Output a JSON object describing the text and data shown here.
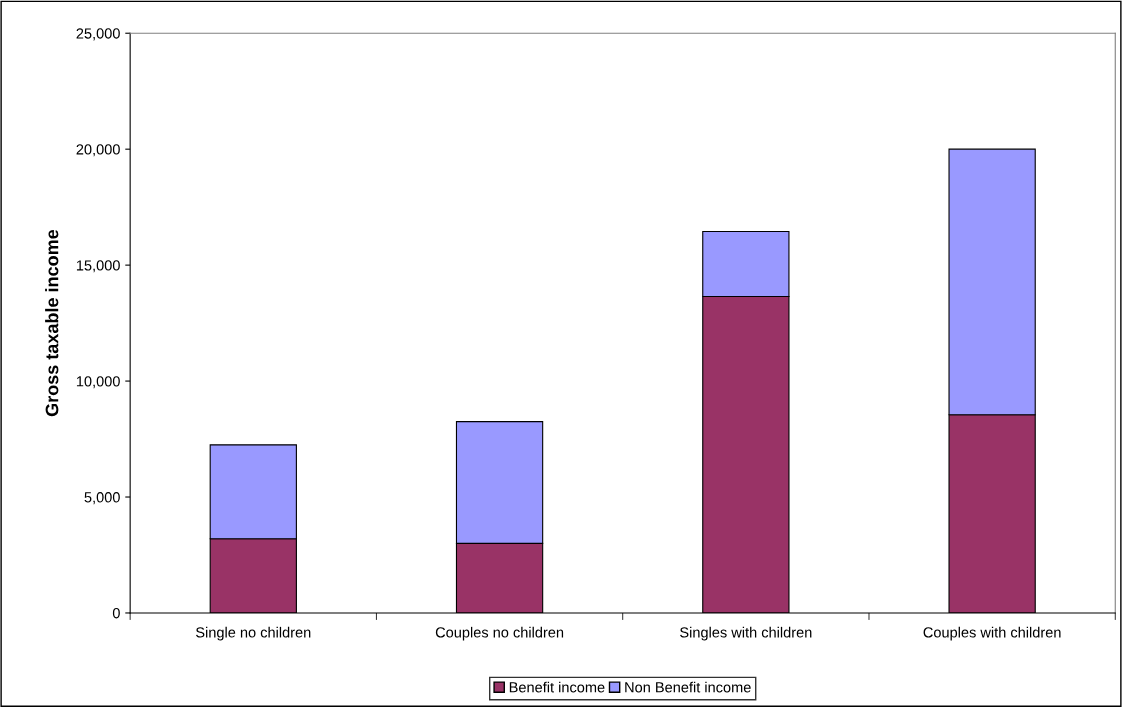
{
  "chart_data": {
    "type": "bar",
    "stacked": true,
    "ylabel": "Gross taxable income",
    "categories": [
      "Single no children",
      "Couples no children",
      "Singles with children",
      "Couples with children"
    ],
    "series": [
      {
        "name": "Benefit income",
        "color": "#993366",
        "values": [
          3200,
          3000,
          13650,
          8550
        ]
      },
      {
        "name": "Non Benefit income",
        "color": "#9999ff",
        "values": [
          4050,
          5250,
          2800,
          11450
        ]
      }
    ],
    "ylim": [
      0,
      25000
    ],
    "yticks": [
      {
        "value": 0,
        "label": "0"
      },
      {
        "value": 5000,
        "label": "5,000"
      },
      {
        "value": 10000,
        "label": "10,000"
      },
      {
        "value": 15000,
        "label": "15,000"
      },
      {
        "value": 20000,
        "label": "20,000"
      },
      {
        "value": 25000,
        "label": "25,000"
      }
    ],
    "grid": false,
    "legend": "bottom"
  }
}
